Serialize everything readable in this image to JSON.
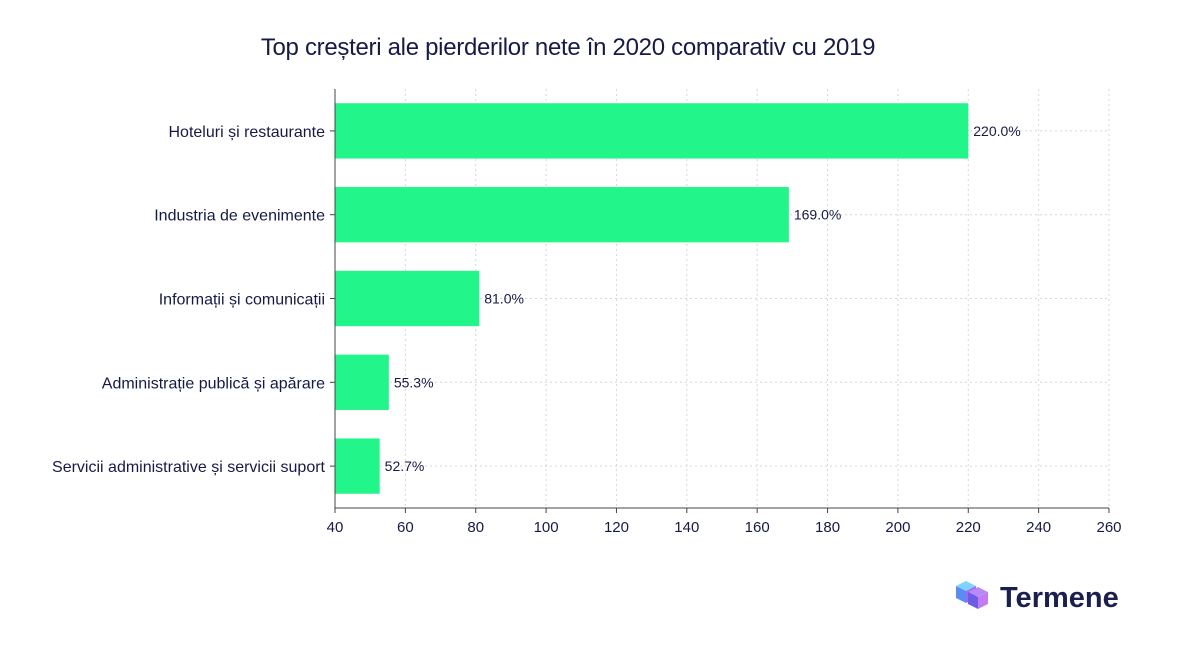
{
  "chart_data": {
    "type": "bar",
    "orientation": "horizontal",
    "title": "Top creșteri ale pierderilor nete în 2020 comparativ cu 2019",
    "categories": [
      "Hoteluri și restaurante",
      "Industria de evenimente",
      "Informații și comunicații",
      "Administrație publică și apărare",
      "Servicii administrative și servicii suport"
    ],
    "values": [
      220.0,
      169.0,
      81.0,
      55.3,
      52.7
    ],
    "data_labels": [
      "220.0%",
      "169.0%",
      "81.0%",
      "55.3%",
      "52.7%"
    ],
    "xlim": [
      40,
      260
    ],
    "xticks": [
      40,
      60,
      80,
      100,
      120,
      140,
      160,
      180,
      200,
      220,
      240,
      260
    ],
    "grid": true,
    "bar_color": "#22f58a"
  },
  "brand": {
    "name": "Termene",
    "logo_icon": "cube-logo-icon"
  }
}
